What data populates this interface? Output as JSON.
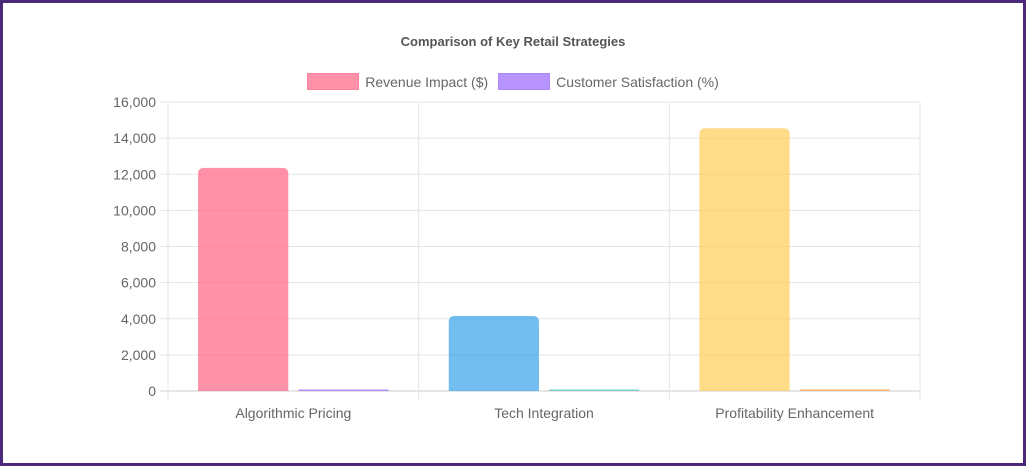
{
  "chart_data": {
    "type": "bar",
    "title": "Comparison of Key Retail Strategies",
    "categories": [
      "Algorithmic Pricing",
      "Tech Integration",
      "Profitability Enhancement"
    ],
    "series": [
      {
        "name": "Revenue Impact ($)",
        "values": [
          12350,
          4150,
          14550
        ],
        "colors": [
          "#ff6384",
          "#36a2eb",
          "#ffcd56"
        ],
        "legend_color": "#ff6384"
      },
      {
        "name": "Customer Satisfaction (%)",
        "values": [
          85,
          80,
          90
        ],
        "colors": [
          "#9966ff",
          "#4bc0c0",
          "#ff9f40"
        ],
        "legend_color": "#9966ff"
      }
    ],
    "ylim": [
      0,
      16000
    ],
    "yticks": [
      "0",
      "2,000",
      "4,000",
      "6,000",
      "8,000",
      "10,000",
      "12,000",
      "14,000",
      "16,000"
    ],
    "grid": true,
    "legend_position": "top"
  }
}
